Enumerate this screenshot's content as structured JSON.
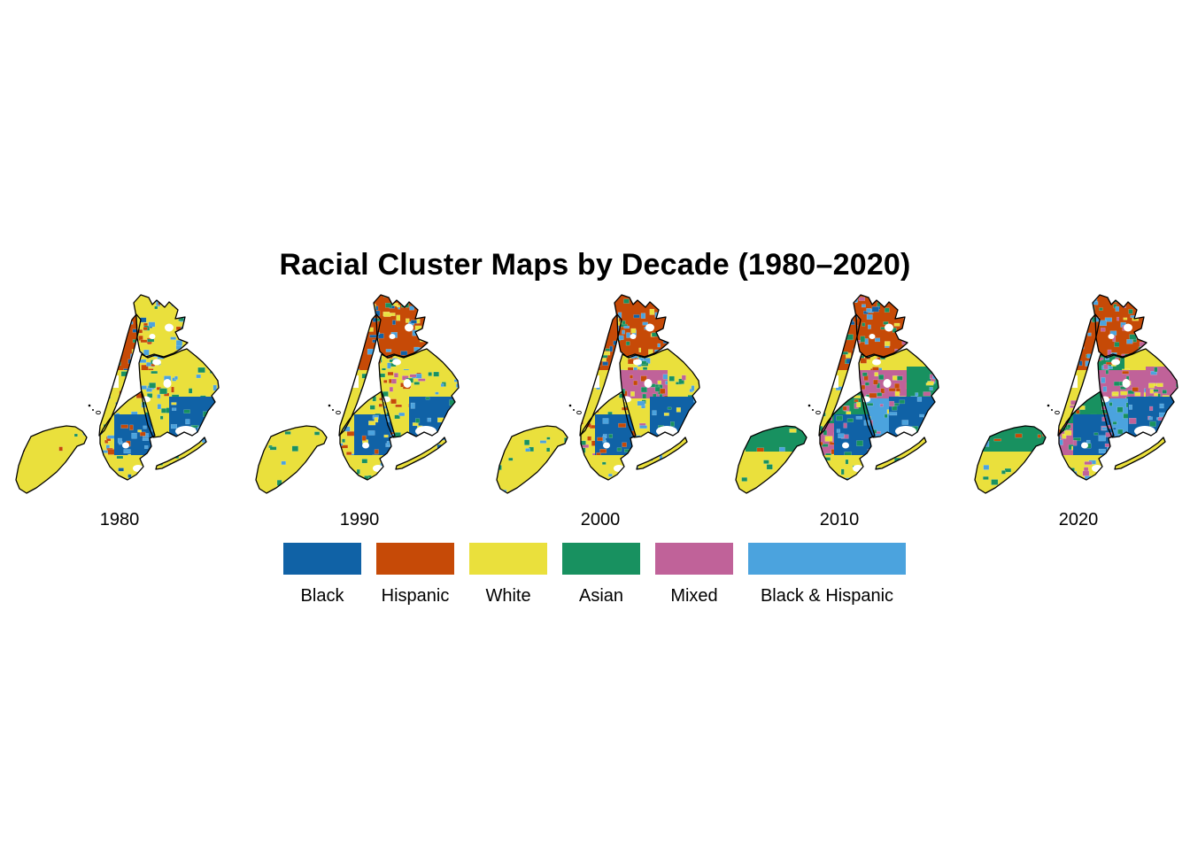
{
  "title": "Racial Cluster Maps by Decade (1980–2020)",
  "background": "#ffffff",
  "palette": {
    "black": "#1062a6",
    "hispanic": "#c64a07",
    "white": "#eae03c",
    "asian": "#189160",
    "mixed": "#c06299",
    "black_hispanic": "#4ba3de"
  },
  "legend": [
    {
      "label": "Black",
      "key": "black"
    },
    {
      "label": "Hispanic",
      "key": "hispanic"
    },
    {
      "label": "White",
      "key": "white"
    },
    {
      "label": "Asian",
      "key": "asian"
    },
    {
      "label": "Mixed",
      "key": "mixed"
    },
    {
      "label": "Black & Hispanic",
      "key": "black_hispanic",
      "wide": true
    }
  ],
  "maps": [
    {
      "decade": "1980",
      "zones": {
        "si_n": {
          "base": "white",
          "speckle": {
            "asian": 0.4,
            "black_hispanic": 0.4,
            "hispanic": 0.2
          },
          "density": 6
        },
        "si_s": {
          "base": "white",
          "speckle": {
            "asian": 0.6,
            "black_hispanic": 0.4
          },
          "density": 4
        },
        "man_upper": {
          "base": "hispanic",
          "speckle": {
            "black": 0.3,
            "black_hispanic": 0.3,
            "white": 0.2,
            "asian": 0.2
          },
          "density": 15
        },
        "man_lower": {
          "base": "white",
          "speckle": {
            "asian": 0.3,
            "black_hispanic": 0.3,
            "hispanic": 0.2,
            "black": 0.2
          },
          "density": 11
        },
        "bronx_w": {
          "base": "white",
          "speckle": {
            "hispanic": 0.35,
            "black_hispanic": 0.3,
            "black": 0.15,
            "asian": 0.2
          },
          "density": 26
        },
        "bronx_e": {
          "base": "white",
          "speckle": {
            "black_hispanic": 0.35,
            "asian": 0.25,
            "black": 0.2,
            "hispanic": 0.2
          },
          "density": 20
        },
        "queens_nw": {
          "base": "white",
          "speckle": {
            "black_hispanic": 0.4,
            "asian": 0.3,
            "hispanic": 0.3
          },
          "density": 14
        },
        "queens_c": {
          "base": "white",
          "speckle": {
            "asian": 0.35,
            "black_hispanic": 0.35,
            "hispanic": 0.3
          },
          "density": 16
        },
        "queens_ne": {
          "base": "white",
          "speckle": {
            "black_hispanic": 0.5,
            "asian": 0.5
          },
          "density": 6
        },
        "queens_sw": {
          "base": "white",
          "speckle": {
            "black_hispanic": 0.5,
            "asian": 0.5
          },
          "density": 6
        },
        "queens_se": {
          "base": "black",
          "speckle": {
            "black_hispanic": 0.5,
            "white": 0.3,
            "asian": 0.2
          },
          "density": 12
        },
        "queens_s": {
          "base": "white",
          "speckle": {
            "black_hispanic": 0.6,
            "asian": 0.4
          },
          "density": 6
        },
        "bk_n": {
          "base": "white",
          "speckle": {
            "asian": 0.35,
            "black_hispanic": 0.35,
            "hispanic": 0.3
          },
          "density": 16
        },
        "bk_w": {
          "base": "white",
          "speckle": {
            "hispanic": 0.5,
            "asian": 0.3,
            "black_hispanic": 0.2
          },
          "density": 10
        },
        "bk_c": {
          "base": "black",
          "speckle": {
            "black_hispanic": 0.55,
            "hispanic": 0.25,
            "white": 0.2
          },
          "density": 16
        },
        "bk_s": {
          "base": "white",
          "speckle": {
            "asian": 0.4,
            "black_hispanic": 0.4,
            "black": 0.2
          },
          "density": 10
        }
      }
    },
    {
      "decade": "1990",
      "zones": {
        "si_n": {
          "base": "white",
          "speckle": {
            "asian": 0.5,
            "black_hispanic": 0.3,
            "hispanic": 0.2
          },
          "density": 7
        },
        "si_s": {
          "base": "white",
          "speckle": {
            "asian": 0.6,
            "black_hispanic": 0.4
          },
          "density": 5
        },
        "man_upper": {
          "base": "hispanic",
          "speckle": {
            "black": 0.35,
            "black_hispanic": 0.3,
            "asian": 0.2,
            "white": 0.15
          },
          "density": 15
        },
        "man_lower": {
          "base": "white",
          "speckle": {
            "asian": 0.3,
            "black_hispanic": 0.3,
            "hispanic": 0.25,
            "mixed": 0.15
          },
          "density": 11
        },
        "bronx_w": {
          "base": "hispanic",
          "speckle": {
            "black_hispanic": 0.35,
            "black": 0.25,
            "white": 0.2,
            "asian": 0.2
          },
          "density": 22
        },
        "bronx_e": {
          "base": "hispanic",
          "speckle": {
            "white": 0.35,
            "black_hispanic": 0.25,
            "asian": 0.25,
            "black": 0.15
          },
          "density": 24
        },
        "queens_nw": {
          "base": "white",
          "speckle": {
            "hispanic": 0.3,
            "asian": 0.3,
            "black_hispanic": 0.4
          },
          "density": 16
        },
        "queens_c": {
          "base": "white",
          "speckle": {
            "asian": 0.35,
            "hispanic": 0.25,
            "mixed": 0.2,
            "black_hispanic": 0.2
          },
          "density": 20
        },
        "queens_ne": {
          "base": "white",
          "speckle": {
            "asian": 0.6,
            "black_hispanic": 0.4
          },
          "density": 8
        },
        "queens_sw": {
          "base": "white",
          "speckle": {
            "black_hispanic": 0.4,
            "asian": 0.3,
            "hispanic": 0.3
          },
          "density": 8
        },
        "queens_se": {
          "base": "black",
          "speckle": {
            "black_hispanic": 0.5,
            "white": 0.3,
            "asian": 0.2
          },
          "density": 12
        },
        "queens_s": {
          "base": "white",
          "speckle": {
            "black_hispanic": 0.5,
            "black": 0.3,
            "asian": 0.2
          },
          "density": 6
        },
        "bk_n": {
          "base": "white",
          "speckle": {
            "asian": 0.4,
            "hispanic": 0.3,
            "black_hispanic": 0.3
          },
          "density": 16
        },
        "bk_w": {
          "base": "white",
          "speckle": {
            "hispanic": 0.45,
            "asian": 0.35,
            "black_hispanic": 0.2
          },
          "density": 10
        },
        "bk_c": {
          "base": "black",
          "speckle": {
            "black_hispanic": 0.45,
            "hispanic": 0.3,
            "white": 0.25
          },
          "density": 16
        },
        "bk_s": {
          "base": "white",
          "speckle": {
            "asian": 0.45,
            "black_hispanic": 0.35,
            "black": 0.2
          },
          "density": 10
        }
      }
    },
    {
      "decade": "2000",
      "zones": {
        "si_n": {
          "base": "white",
          "speckle": {
            "asian": 0.5,
            "black_hispanic": 0.5
          },
          "density": 8
        },
        "si_s": {
          "base": "white",
          "speckle": {
            "asian": 0.7,
            "black_hispanic": 0.3
          },
          "density": 6
        },
        "man_upper": {
          "base": "hispanic",
          "speckle": {
            "black": 0.3,
            "black_hispanic": 0.3,
            "asian": 0.2,
            "white": 0.2
          },
          "density": 15
        },
        "man_lower": {
          "base": "white",
          "speckle": {
            "asian": 0.35,
            "black_hispanic": 0.25,
            "hispanic": 0.25,
            "mixed": 0.15
          },
          "density": 11
        },
        "bronx_w": {
          "base": "hispanic",
          "speckle": {
            "black_hispanic": 0.35,
            "asian": 0.25,
            "black": 0.2,
            "white": 0.2
          },
          "density": 22
        },
        "bronx_e": {
          "base": "hispanic",
          "speckle": {
            "white": 0.3,
            "black_hispanic": 0.3,
            "asian": 0.25,
            "black": 0.15
          },
          "density": 24
        },
        "queens_nw": {
          "base": "white",
          "speckle": {
            "hispanic": 0.35,
            "asian": 0.3,
            "black_hispanic": 0.35
          },
          "density": 18
        },
        "queens_c": {
          "base": "mixed",
          "speckle": {
            "asian": 0.4,
            "hispanic": 0.3,
            "white": 0.15,
            "black_hispanic": 0.15
          },
          "density": 22
        },
        "queens_ne": {
          "base": "white",
          "speckle": {
            "asian": 0.55,
            "mixed": 0.25,
            "black_hispanic": 0.2
          },
          "density": 10
        },
        "queens_sw": {
          "base": "white",
          "speckle": {
            "black_hispanic": 0.4,
            "asian": 0.4,
            "mixed": 0.2
          },
          "density": 9
        },
        "queens_se": {
          "base": "black",
          "speckle": {
            "black_hispanic": 0.4,
            "white": 0.3,
            "asian": 0.3
          },
          "density": 12
        },
        "queens_s": {
          "base": "white",
          "speckle": {
            "black": 0.4,
            "black_hispanic": 0.4,
            "asian": 0.2
          },
          "density": 7
        },
        "bk_n": {
          "base": "white",
          "speckle": {
            "asian": 0.45,
            "hispanic": 0.3,
            "black_hispanic": 0.25
          },
          "density": 18
        },
        "bk_w": {
          "base": "white",
          "speckle": {
            "hispanic": 0.4,
            "asian": 0.35,
            "mixed": 0.25
          },
          "density": 12
        },
        "bk_c": {
          "base": "black",
          "speckle": {
            "black_hispanic": 0.45,
            "asian": 0.3,
            "hispanic": 0.25
          },
          "density": 16
        },
        "bk_s": {
          "base": "white",
          "speckle": {
            "asian": 0.5,
            "black_hispanic": 0.3,
            "black": 0.2
          },
          "density": 12
        }
      }
    },
    {
      "decade": "2010",
      "zones": {
        "si_n": {
          "base": "asian",
          "speckle": {
            "white": 0.35,
            "black_hispanic": 0.3,
            "hispanic": 0.2,
            "mixed": 0.15
          },
          "density": 8
        },
        "si_s": {
          "base": "white",
          "speckle": {
            "asian": 0.75,
            "mixed": 0.25
          },
          "density": 10
        },
        "man_upper": {
          "base": "hispanic",
          "speckle": {
            "black": 0.25,
            "black_hispanic": 0.3,
            "asian": 0.25,
            "white": 0.2
          },
          "density": 15
        },
        "man_lower": {
          "base": "white",
          "speckle": {
            "asian": 0.35,
            "mixed": 0.25,
            "black_hispanic": 0.25,
            "hispanic": 0.15
          },
          "density": 11
        },
        "bronx_w": {
          "base": "hispanic",
          "speckle": {
            "black_hispanic": 0.35,
            "asian": 0.3,
            "mixed": 0.2,
            "black": 0.15
          },
          "density": 22
        },
        "bronx_e": {
          "base": "hispanic",
          "speckle": {
            "mixed": 0.35,
            "asian": 0.3,
            "black_hispanic": 0.2,
            "white": 0.15
          },
          "density": 24
        },
        "queens_nw": {
          "base": "white",
          "speckle": {
            "hispanic": 0.3,
            "asian": 0.3,
            "mixed": 0.2,
            "black_hispanic": 0.2
          },
          "density": 18
        },
        "queens_c": {
          "base": "mixed",
          "speckle": {
            "asian": 0.4,
            "hispanic": 0.3,
            "black_hispanic": 0.15,
            "white": 0.15
          },
          "density": 22
        },
        "queens_ne": {
          "base": "asian",
          "speckle": {
            "mixed": 0.4,
            "white": 0.35,
            "black_hispanic": 0.25
          },
          "density": 12
        },
        "queens_sw": {
          "base": "black_hispanic",
          "speckle": {
            "asian": 0.4,
            "mixed": 0.3,
            "white": 0.3
          },
          "density": 9
        },
        "queens_se": {
          "base": "black",
          "speckle": {
            "mixed": 0.35,
            "black_hispanic": 0.35,
            "asian": 0.3
          },
          "density": 13
        },
        "queens_s": {
          "base": "white",
          "speckle": {
            "black_hispanic": 0.5,
            "black": 0.3,
            "asian": 0.2
          },
          "density": 7
        },
        "bk_n": {
          "base": "asian",
          "speckle": {
            "white": 0.35,
            "hispanic": 0.3,
            "mixed": 0.35
          },
          "density": 16
        },
        "bk_w": {
          "base": "mixed",
          "speckle": {
            "asian": 0.4,
            "white": 0.3,
            "hispanic": 0.3
          },
          "density": 12
        },
        "bk_c": {
          "base": "black",
          "speckle": {
            "black_hispanic": 0.4,
            "mixed": 0.3,
            "asian": 0.3
          },
          "density": 16
        },
        "bk_s": {
          "base": "white",
          "speckle": {
            "asian": 0.5,
            "mixed": 0.25,
            "black_hispanic": 0.25
          },
          "density": 14
        }
      }
    },
    {
      "decade": "2020",
      "zones": {
        "si_n": {
          "base": "asian",
          "speckle": {
            "black_hispanic": 0.45,
            "hispanic": 0.3,
            "mixed": 0.25
          },
          "density": 9
        },
        "si_s": {
          "base": "white",
          "speckle": {
            "asian": 0.85,
            "black_hispanic": 0.15
          },
          "density": 11
        },
        "man_upper": {
          "base": "hispanic",
          "speckle": {
            "black_hispanic": 0.3,
            "asian": 0.3,
            "mixed": 0.2,
            "black": 0.2
          },
          "density": 15
        },
        "man_lower": {
          "base": "white",
          "speckle": {
            "asian": 0.35,
            "mixed": 0.3,
            "black_hispanic": 0.2,
            "hispanic": 0.15
          },
          "density": 11
        },
        "bronx_w": {
          "base": "hispanic",
          "speckle": {
            "black_hispanic": 0.35,
            "asian": 0.3,
            "mixed": 0.2,
            "black": 0.15
          },
          "density": 22
        },
        "bronx_e": {
          "base": "hispanic",
          "speckle": {
            "asian": 0.35,
            "mixed": 0.3,
            "black_hispanic": 0.2,
            "white": 0.15
          },
          "density": 24
        },
        "queens_nw": {
          "base": "asian",
          "speckle": {
            "hispanic": 0.3,
            "mixed": 0.3,
            "black_hispanic": 0.2,
            "white": 0.2
          },
          "density": 18
        },
        "queens_c": {
          "base": "mixed",
          "speckle": {
            "asian": 0.35,
            "hispanic": 0.3,
            "white": 0.2,
            "black_hispanic": 0.15
          },
          "density": 22
        },
        "queens_ne": {
          "base": "mixed",
          "speckle": {
            "asian": 0.4,
            "white": 0.3,
            "black_hispanic": 0.3
          },
          "density": 14
        },
        "queens_sw": {
          "base": "black_hispanic",
          "speckle": {
            "asian": 0.4,
            "mixed": 0.4,
            "black": 0.2
          },
          "density": 9
        },
        "queens_se": {
          "base": "black",
          "speckle": {
            "mixed": 0.35,
            "black_hispanic": 0.35,
            "asian": 0.3
          },
          "density": 13
        },
        "queens_s": {
          "base": "white",
          "speckle": {
            "black_hispanic": 0.5,
            "asian": 0.3,
            "black": 0.2
          },
          "density": 7
        },
        "bk_n": {
          "base": "asian",
          "speckle": {
            "mixed": 0.35,
            "white": 0.3,
            "hispanic": 0.35
          },
          "density": 16
        },
        "bk_w": {
          "base": "mixed",
          "speckle": {
            "asian": 0.35,
            "white": 0.3,
            "black_hispanic": 0.35
          },
          "density": 14
        },
        "bk_c": {
          "base": "black",
          "speckle": {
            "black_hispanic": 0.4,
            "mixed": 0.3,
            "asian": 0.3
          },
          "density": 16
        },
        "bk_s": {
          "base": "white",
          "speckle": {
            "asian": 0.45,
            "mixed": 0.3,
            "black_hispanic": 0.25
          },
          "density": 14
        }
      }
    }
  ]
}
